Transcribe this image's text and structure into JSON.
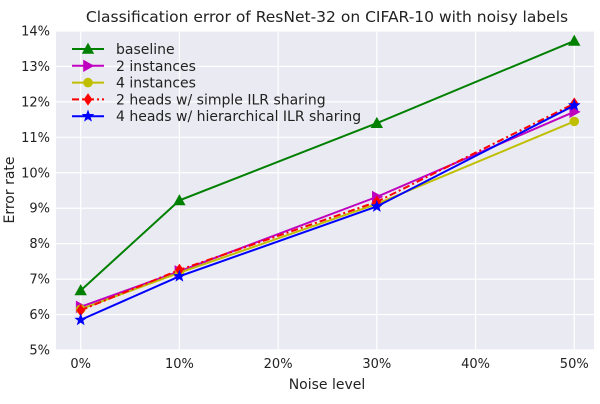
{
  "chart_data": {
    "type": "line",
    "title": "Classification error of ResNet-32 on CIFAR-10 with noisy labels",
    "xlabel": "Noise level",
    "ylabel": "Error rate",
    "x_ticks": [
      0,
      10,
      20,
      30,
      40,
      50
    ],
    "x_tick_labels": [
      "0%",
      "10%",
      "20%",
      "30%",
      "40%",
      "50%"
    ],
    "y_ticks": [
      5,
      6,
      7,
      8,
      9,
      10,
      11,
      12,
      13,
      14
    ],
    "y_tick_labels": [
      "5%",
      "6%",
      "7%",
      "8%",
      "9%",
      "10%",
      "11%",
      "12%",
      "13%",
      "14%"
    ],
    "xlim": [
      -2.5,
      52
    ],
    "ylim": [
      5,
      14
    ],
    "grid": true,
    "background": "#eaeaf2",
    "legend_position": "top-left",
    "series": [
      {
        "name": "baseline",
        "x": [
          0,
          10,
          30,
          50
        ],
        "values": [
          6.68,
          9.22,
          11.4,
          13.72
        ],
        "color": "#008000",
        "marker": "triangle-up",
        "dash": "solid"
      },
      {
        "name": "2 instances",
        "x": [
          0,
          10,
          30,
          50
        ],
        "values": [
          6.22,
          7.22,
          9.32,
          11.72
        ],
        "color": "#bf00bf",
        "marker": "triangle-right",
        "dash": "solid"
      },
      {
        "name": "4 instances",
        "x": [
          0,
          10,
          30,
          50
        ],
        "values": [
          6.15,
          7.18,
          9.12,
          11.45
        ],
        "color": "#bfbf00",
        "marker": "circle",
        "dash": "solid"
      },
      {
        "name": "2 heads w/ simple ILR sharing",
        "x": [
          0,
          10,
          30,
          50
        ],
        "values": [
          6.12,
          7.26,
          9.18,
          11.95
        ],
        "color": "#ff0000",
        "marker": "diamond",
        "dash": "dashdot"
      },
      {
        "name": "4 heads w/ hierarchical ILR sharing",
        "x": [
          0,
          10,
          30,
          50
        ],
        "values": [
          5.85,
          7.08,
          9.05,
          11.9
        ],
        "color": "#0000ff",
        "marker": "star",
        "dash": "solid"
      }
    ]
  }
}
